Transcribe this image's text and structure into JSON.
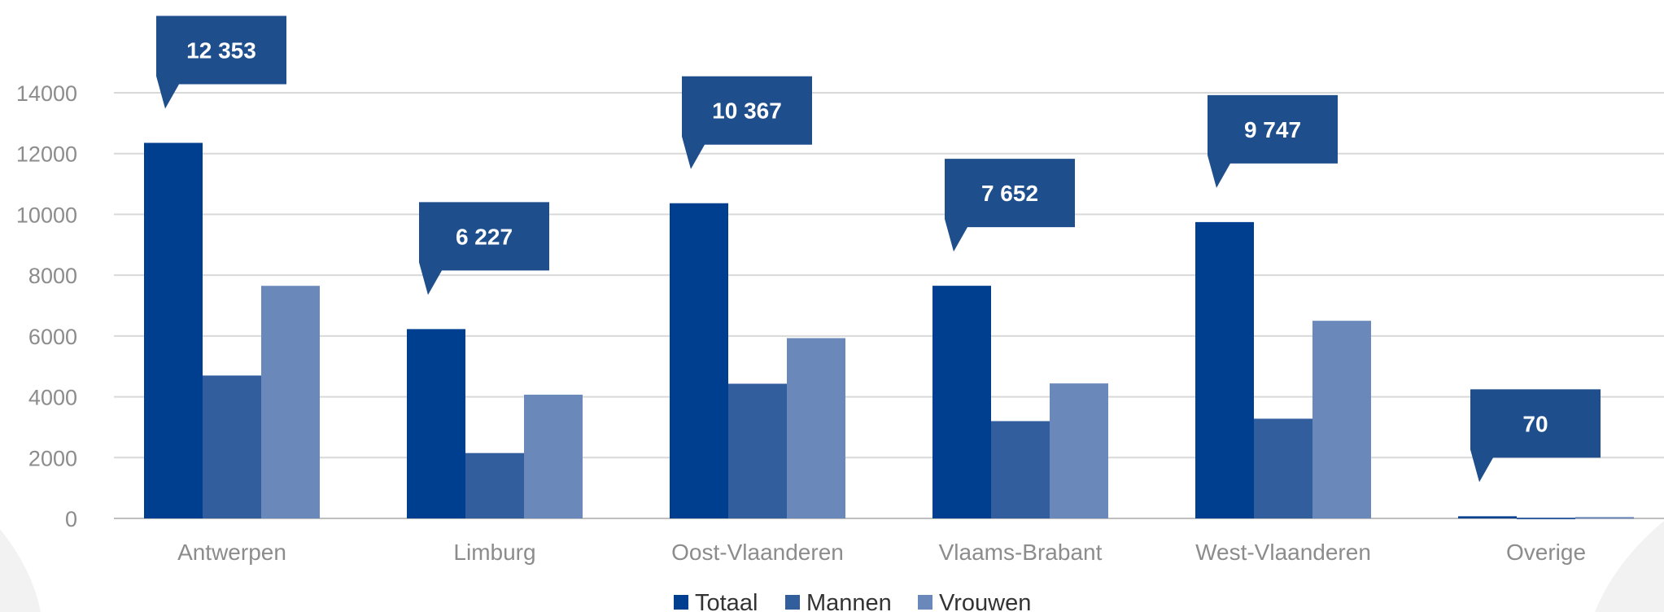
{
  "chart_data": {
    "type": "bar",
    "categories": [
      "Antwerpen",
      "Limburg",
      "Oost-Vlaanderen",
      "Vlaams-Brabant",
      "West-Vlaanderen",
      "Overige"
    ],
    "series": [
      {
        "name": "Totaal",
        "values": [
          12353,
          6227,
          10367,
          7652,
          9747,
          70
        ],
        "color": "#003f8f"
      },
      {
        "name": "Mannen",
        "values": [
          4700,
          2150,
          4430,
          3200,
          3280,
          25
        ],
        "color": "#335e9e"
      },
      {
        "name": "Vrouwen",
        "values": [
          7650,
          4070,
          5930,
          4440,
          6500,
          45
        ],
        "color": "#6a88ba"
      }
    ],
    "callouts": [
      "12 353",
      "6 227",
      "10 367",
      "7 652",
      "9 747",
      "70"
    ],
    "callout_color": "#1f4e8c",
    "yticks": [
      0,
      2000,
      4000,
      6000,
      8000,
      10000,
      12000,
      14000
    ],
    "ylim": [
      0,
      14000
    ],
    "grid": true,
    "legend_position": "bottom"
  }
}
